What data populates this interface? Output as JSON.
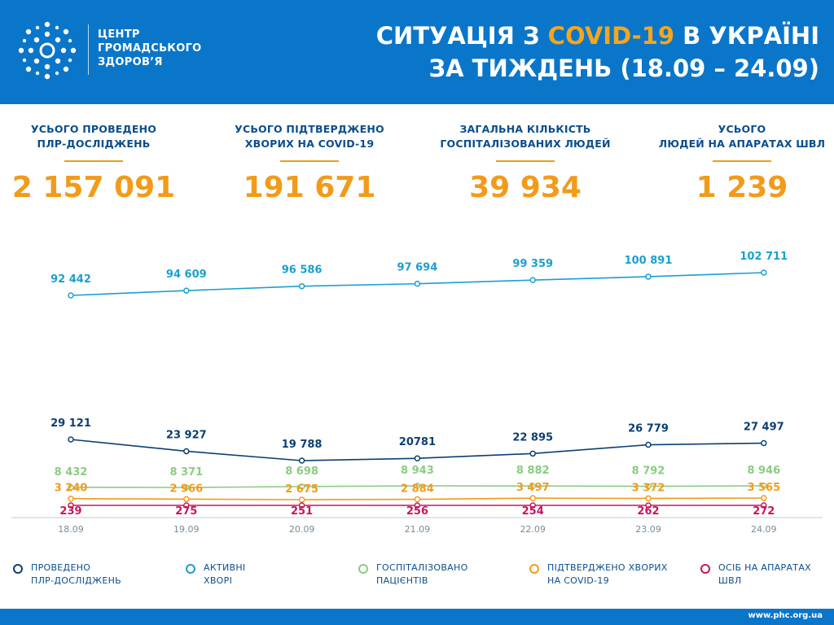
{
  "header": {
    "org_line1": "ЦЕНТР",
    "org_line2": "ГРОМАДСЬКОГО",
    "org_line3": "ЗДОРОВ’Я",
    "title_part1": "СИТУАЦІЯ З ",
    "title_highlight": "COVID-19",
    "title_part2": " В УКРАЇНІ",
    "title_line2": "ЗА ТИЖДЕНЬ (18.09 – 24.09)"
  },
  "stats": [
    {
      "label_line1": "УСЬОГО ПРОВЕДЕНО",
      "label_line2": "ПЛР-ДОСЛІДЖЕНЬ",
      "value": "2 157 091"
    },
    {
      "label_line1": "УСЬОГО ПІДТВЕРДЖЕНО",
      "label_line2": "ХВОРИХ НА COVID-19",
      "value": "191 671"
    },
    {
      "label_line1": "ЗАГАЛЬНА КІЛЬКІСТЬ",
      "label_line2": "ГОСПІТАЛІЗОВАНИХ ЛЮДЕЙ",
      "value": "39 934"
    },
    {
      "label_line1": "УСЬОГО",
      "label_line2": "ЛЮДЕЙ НА АПАРАТАХ ШВЛ",
      "value": "1 239"
    }
  ],
  "chart_data": {
    "type": "line",
    "categories": [
      "18.09",
      "19.09",
      "20.09",
      "21.09",
      "22.09",
      "23.09",
      "24.09"
    ],
    "series": [
      {
        "key": "active",
        "color": "#1a9fd0",
        "values": [
          92442,
          94609,
          96586,
          97694,
          99359,
          100891,
          102711
        ],
        "labels": [
          "92 442",
          "94 609",
          "96 586",
          "97 694",
          "99 359",
          "100 891",
          "102 711"
        ]
      },
      {
        "key": "pcr",
        "color": "#0b3f73",
        "values": [
          29121,
          23927,
          19788,
          20781,
          22895,
          26779,
          27497
        ],
        "labels": [
          "29 121",
          "23 927",
          "19 788",
          "20781",
          "22 895",
          "26 779",
          "27 497"
        ]
      },
      {
        "key": "hospitalized",
        "color": "#8ccb83",
        "values": [
          8432,
          8371,
          8698,
          8943,
          8882,
          8792,
          8946
        ],
        "labels": [
          "8 432",
          "8 371",
          "8 698",
          "8 943",
          "8 882",
          "8 792",
          "8 946"
        ]
      },
      {
        "key": "confirmed",
        "color": "#f29b1a",
        "values": [
          3240,
          2966,
          2675,
          2884,
          3497,
          3372,
          3565
        ],
        "labels": [
          "3 240",
          "2 966",
          "2 675",
          "2 884",
          "3 497",
          "3 372",
          "3 565"
        ]
      },
      {
        "key": "ventilators",
        "color": "#c5175d",
        "values": [
          239,
          275,
          251,
          256,
          254,
          262,
          272
        ],
        "labels": [
          "239",
          "275",
          "251",
          "256",
          "254",
          "262",
          "272"
        ]
      }
    ],
    "xlabel": "",
    "ylabel": "",
    "grid": false,
    "legend_position": "bottom"
  },
  "legend": [
    {
      "line1": "ПРОВЕДЕНО",
      "line2": "ПЛР-ДОСЛІДЖЕНЬ",
      "color": "#0b3f73"
    },
    {
      "line1": "АКТИВНІ",
      "line2": "ХВОРІ",
      "color": "#1a9fd0"
    },
    {
      "line1": "ГОСПІТАЛІЗОВАНО",
      "line2": "ПАЦІЄНТІВ",
      "color": "#8ccb83"
    },
    {
      "line1": "ПІДТВЕРДЖЕНО ХВОРИХ",
      "line2": "НА COVID-19",
      "color": "#f29b1a"
    },
    {
      "line1": "ОСІБ НА АПАРАТАХ",
      "line2": "ШВЛ",
      "color": "#c5175d"
    }
  ],
  "footer": {
    "url": "www.phc.org.ua"
  }
}
